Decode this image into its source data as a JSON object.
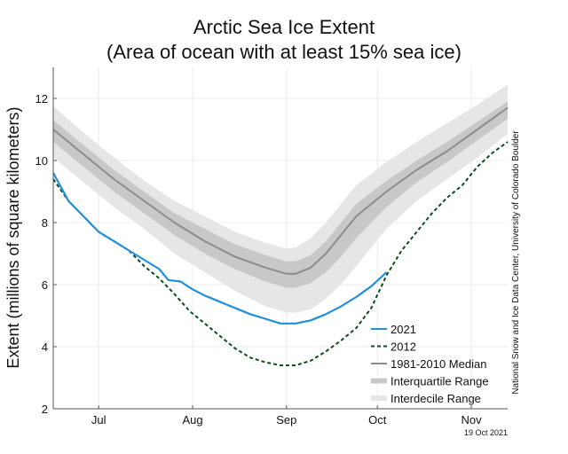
{
  "chart_data": {
    "type": "line",
    "title": "Arctic Sea Ice Extent",
    "subtitle": "(Area of ocean with at least 15% sea ice)",
    "ylabel": "Extent (millions of square kilometers)",
    "xlabel": "",
    "ylim": [
      2,
      13
    ],
    "xlim": [
      0,
      150
    ],
    "y_ticks": [
      2,
      4,
      6,
      8,
      10,
      12
    ],
    "x_ticks": [
      {
        "x": 15,
        "label": "Jul"
      },
      {
        "x": 46,
        "label": "Aug"
      },
      {
        "x": 77,
        "label": "Sep"
      },
      {
        "x": 107,
        "label": "Oct"
      },
      {
        "x": 138,
        "label": "Nov"
      }
    ],
    "grid": true,
    "legend_position": "bottom-right",
    "credit": "National Snow and Ice Data Center, University of Colorado Boulder",
    "date_stamp": "19 Oct 2021",
    "colors": {
      "s2021": "#1e90dc",
      "s2012": "#0a4d1e",
      "median": "#8c8c8c",
      "interquartile": "#c8c8c8",
      "interdecile": "#e6e6e6"
    },
    "series": [
      {
        "name": "2021",
        "style": "solid",
        "x": [
          0,
          5,
          10,
          15,
          20,
          25,
          30,
          35,
          38,
          42,
          46,
          50,
          55,
          60,
          65,
          70,
          75,
          80,
          85,
          90,
          95,
          100,
          105,
          110
        ],
        "values": [
          9.6,
          8.7,
          8.2,
          7.7,
          7.4,
          7.1,
          6.8,
          6.5,
          6.15,
          6.1,
          5.85,
          5.65,
          5.45,
          5.25,
          5.05,
          4.9,
          4.75,
          4.75,
          4.85,
          5.05,
          5.3,
          5.6,
          5.95,
          6.4
        ]
      },
      {
        "name": "2012",
        "style": "dashed",
        "x": [
          0,
          5,
          10,
          15,
          20,
          25,
          30,
          35,
          40,
          45,
          50,
          55,
          60,
          65,
          70,
          75,
          80,
          85,
          90,
          95,
          100,
          105,
          110,
          115,
          120,
          125,
          130,
          135,
          140,
          145,
          150
        ],
        "values": [
          9.4,
          8.7,
          8.2,
          7.7,
          7.4,
          7.1,
          6.6,
          6.2,
          5.7,
          5.15,
          4.75,
          4.35,
          3.95,
          3.65,
          3.5,
          3.4,
          3.4,
          3.55,
          3.85,
          4.2,
          4.6,
          5.25,
          6.3,
          7.1,
          7.7,
          8.3,
          8.8,
          9.2,
          9.8,
          10.25,
          10.6
        ]
      },
      {
        "name": "1981-2010 Median",
        "style": "solid",
        "x": [
          0,
          10,
          20,
          30,
          40,
          50,
          60,
          70,
          77,
          80,
          85,
          90,
          95,
          100,
          110,
          120,
          130,
          140,
          150
        ],
        "values": [
          11.0,
          10.2,
          9.4,
          8.7,
          8.0,
          7.4,
          6.9,
          6.55,
          6.35,
          6.35,
          6.55,
          7.0,
          7.6,
          8.2,
          9.0,
          9.7,
          10.3,
          11.0,
          11.7
        ]
      },
      {
        "name": "Interquartile Range",
        "style": "band",
        "x": [
          0,
          10,
          20,
          30,
          40,
          50,
          60,
          70,
          77,
          80,
          85,
          90,
          95,
          100,
          110,
          120,
          130,
          140,
          150
        ],
        "upper": [
          11.3,
          10.5,
          9.7,
          9.0,
          8.3,
          7.8,
          7.3,
          6.95,
          6.75,
          6.75,
          6.95,
          7.4,
          8.0,
          8.6,
          9.35,
          10.0,
          10.6,
          11.25,
          11.9
        ],
        "lower": [
          10.6,
          9.8,
          9.0,
          8.3,
          7.6,
          7.0,
          6.5,
          6.1,
          5.9,
          5.9,
          6.05,
          6.4,
          6.9,
          7.5,
          8.5,
          9.3,
          9.95,
          10.65,
          11.35
        ]
      },
      {
        "name": "Interdecile Range",
        "style": "band",
        "x": [
          0,
          10,
          20,
          30,
          40,
          50,
          60,
          70,
          77,
          80,
          85,
          90,
          95,
          100,
          110,
          120,
          130,
          140,
          150
        ],
        "upper": [
          11.75,
          10.9,
          10.1,
          9.35,
          8.7,
          8.2,
          7.7,
          7.35,
          7.15,
          7.2,
          7.5,
          8.0,
          8.6,
          9.2,
          9.95,
          10.6,
          11.2,
          11.8,
          12.45
        ],
        "lower": [
          10.1,
          9.3,
          8.5,
          7.8,
          7.0,
          6.4,
          5.8,
          5.3,
          5.1,
          5.1,
          5.2,
          5.55,
          6.0,
          6.6,
          7.8,
          8.7,
          9.4,
          10.1,
          10.85
        ]
      }
    ]
  }
}
